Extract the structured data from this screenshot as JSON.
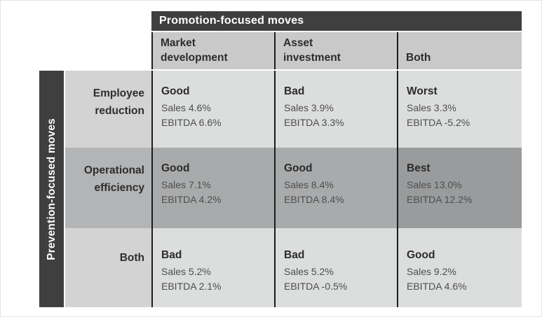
{
  "axes": {
    "promotion_title": "Promotion-focused moves",
    "prevention_title": "Prevention-focused moves"
  },
  "columns": [
    "Market\ndevelopment",
    "Asset\ninvestment",
    "Both"
  ],
  "rows": [
    {
      "label": "Employee\nreduction",
      "cells": [
        {
          "rating": "Good",
          "sales": "Sales 4.6%",
          "ebitda": "EBITDA 6.6%"
        },
        {
          "rating": "Bad",
          "sales": "Sales 3.9%",
          "ebitda": "EBITDA 3.3%"
        },
        {
          "rating": "Worst",
          "sales": "Sales 3.3%",
          "ebitda": "EBITDA -5.2%"
        }
      ]
    },
    {
      "label": "Operational\nefficiency",
      "cells": [
        {
          "rating": "Good",
          "sales": "Sales 7.1%",
          "ebitda": "EBITDA 4.2%"
        },
        {
          "rating": "Good",
          "sales": "Sales 8.4%",
          "ebitda": "EBITDA 8.4%"
        },
        {
          "rating": "Best",
          "sales": "Sales 13.0%",
          "ebitda": "EBITDA 12.2%"
        }
      ]
    },
    {
      "label": "Both",
      "cells": [
        {
          "rating": "Bad",
          "sales": "Sales 5.2%",
          "ebitda": "EBITDA 2.1%"
        },
        {
          "rating": "Bad",
          "sales": "Sales 5.2%",
          "ebitda": "EBITDA -0.5%"
        },
        {
          "rating": "Good",
          "sales": "Sales 9.2%",
          "ebitda": "EBITDA 4.6%"
        }
      ]
    }
  ],
  "colors": {
    "axis_bar": "#3f3f40",
    "column_header_bg": "#c9c9c9",
    "row_light_label_bg": "#d3d3d3",
    "row_light_cell_bg": "#dcdddd",
    "row_mid_label_bg": "#b3b4b5",
    "row_mid_cell_bg": "#a9aaab",
    "best_cell_bg": "#9a9b9c",
    "divider": "#1d1d1d",
    "text_dark": "#2d2d2d",
    "text_muted": "#4e4e4e",
    "axis_text": "#ffffff"
  },
  "chart_data": {
    "type": "table",
    "title": "Promotion-focused moves vs Prevention-focused moves",
    "column_axis_label": "Promotion-focused moves",
    "row_axis_label": "Prevention-focused moves",
    "columns": [
      "Market development",
      "Asset investment",
      "Both"
    ],
    "rows": [
      "Employee reduction",
      "Operational efficiency",
      "Both"
    ],
    "cells": [
      [
        {
          "rating": "Good",
          "sales_pct": 4.6,
          "ebitda_pct": 6.6
        },
        {
          "rating": "Bad",
          "sales_pct": 3.9,
          "ebitda_pct": 3.3
        },
        {
          "rating": "Worst",
          "sales_pct": 3.3,
          "ebitda_pct": -5.2
        }
      ],
      [
        {
          "rating": "Good",
          "sales_pct": 7.1,
          "ebitda_pct": 4.2
        },
        {
          "rating": "Good",
          "sales_pct": 8.4,
          "ebitda_pct": 8.4
        },
        {
          "rating": "Best",
          "sales_pct": 13.0,
          "ebitda_pct": 12.2
        }
      ],
      [
        {
          "rating": "Bad",
          "sales_pct": 5.2,
          "ebitda_pct": 2.1
        },
        {
          "rating": "Bad",
          "sales_pct": 5.2,
          "ebitda_pct": -0.5
        },
        {
          "rating": "Good",
          "sales_pct": 9.2,
          "ebitda_pct": 4.6
        }
      ]
    ],
    "highlight": {
      "best": {
        "row": "Operational efficiency",
        "column": "Both"
      },
      "worst": {
        "row": "Employee reduction",
        "column": "Both"
      }
    },
    "layout_hints": {
      "row_emphasis": "middle row shaded darker",
      "grid": "black vertical dividers between columns only"
    }
  }
}
